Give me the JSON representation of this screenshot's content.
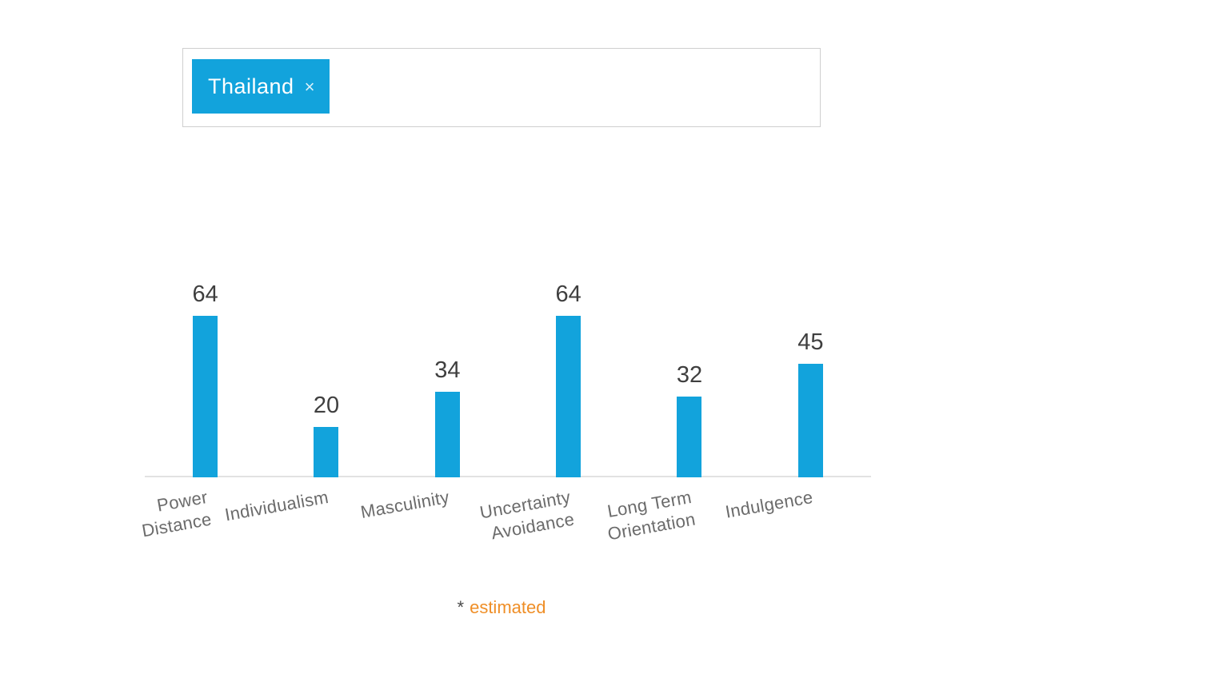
{
  "country_selector": {
    "tags": [
      {
        "label": "Thailand",
        "remove_glyph": "×"
      }
    ]
  },
  "chart_data": {
    "type": "bar",
    "title": "",
    "categories": [
      "Power Distance",
      "Individualism",
      "Masculinity",
      "Uncertainty Avoidance",
      "Long Term Orientation",
      "Indulgence"
    ],
    "category_label_lines": [
      [
        "Power",
        "Distance"
      ],
      [
        "Individualism"
      ],
      [
        "Masculinity"
      ],
      [
        "Uncertainty",
        "Avoidance"
      ],
      [
        "Long Term",
        "Orientation"
      ],
      [
        "Indulgence"
      ]
    ],
    "series": [
      {
        "name": "Thailand",
        "values": [
          64,
          20,
          34,
          64,
          32,
          45
        ]
      }
    ],
    "value_labels": [
      "64",
      "20",
      "34",
      "64",
      "32",
      "45"
    ],
    "xlabel": "",
    "ylabel": "",
    "ylim": [
      0,
      100
    ],
    "grid": false,
    "legend": "none",
    "bar_color": "#12a3dc",
    "label_rotation_deg": -10
  },
  "footnote": {
    "marker": "*",
    "text": "estimated"
  },
  "colors": {
    "page_background": "#ffffff",
    "chip_background": "#12a3dc",
    "chip_text": "#ffffff",
    "bar": "#12a3dc",
    "axis_line": "#e2e2e2",
    "value_label": "#3f3f3f",
    "category_label": "#6b6b6b",
    "footnote_marker": "#4a4a4a",
    "footnote_text": "#ef8e26",
    "selector_border": "#cfcfcf"
  }
}
